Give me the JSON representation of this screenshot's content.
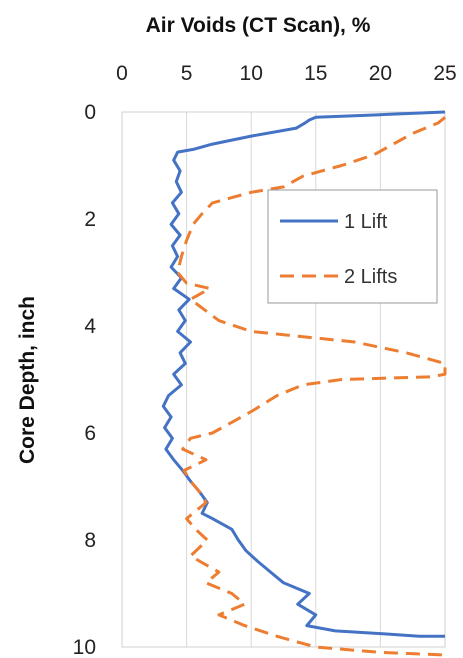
{
  "chart_data": {
    "type": "line",
    "title": "Air Voids (CT Scan), %",
    "xlabel": "Air Voids (CT Scan), %",
    "ylabel": "Core Depth, inch",
    "xlim": [
      0,
      25
    ],
    "ylim": [
      0,
      10
    ],
    "y_reversed": true,
    "x_axis_position": "top",
    "x_ticks": [
      "0",
      "5",
      "10",
      "15",
      "20",
      "25"
    ],
    "y_ticks": [
      "0",
      "2",
      "4",
      "6",
      "8",
      "10"
    ],
    "grid": "vertical",
    "legend_position": "right",
    "series": [
      {
        "name": "1 Lift",
        "color": "#4472c4",
        "dash": "solid",
        "points": [
          [
            25,
            0.0
          ],
          [
            20,
            0.05
          ],
          [
            15,
            0.1
          ],
          [
            14.5,
            0.15
          ],
          [
            14.2,
            0.2
          ],
          [
            13.5,
            0.3
          ],
          [
            10,
            0.45
          ],
          [
            7,
            0.6
          ],
          [
            5.5,
            0.7
          ],
          [
            4.3,
            0.75
          ],
          [
            4.0,
            0.9
          ],
          [
            4.5,
            1.1
          ],
          [
            4.2,
            1.3
          ],
          [
            4.6,
            1.5
          ],
          [
            3.9,
            1.7
          ],
          [
            4.4,
            1.9
          ],
          [
            3.8,
            2.1
          ],
          [
            4.5,
            2.3
          ],
          [
            3.9,
            2.5
          ],
          [
            4.3,
            2.7
          ],
          [
            3.8,
            2.9
          ],
          [
            4.6,
            3.1
          ],
          [
            4.0,
            3.3
          ],
          [
            5.2,
            3.5
          ],
          [
            4.4,
            3.7
          ],
          [
            4.9,
            3.9
          ],
          [
            4.3,
            4.1
          ],
          [
            5.3,
            4.3
          ],
          [
            4.5,
            4.5
          ],
          [
            4.9,
            4.7
          ],
          [
            4.0,
            4.9
          ],
          [
            4.6,
            5.1
          ],
          [
            3.6,
            5.3
          ],
          [
            3.2,
            5.5
          ],
          [
            3.8,
            5.7
          ],
          [
            3.3,
            5.9
          ],
          [
            3.9,
            6.1
          ],
          [
            3.4,
            6.3
          ],
          [
            4.0,
            6.5
          ],
          [
            4.7,
            6.7
          ],
          [
            5.3,
            6.9
          ],
          [
            6.0,
            7.1
          ],
          [
            6.6,
            7.3
          ],
          [
            6.2,
            7.5
          ],
          [
            7.0,
            7.6
          ],
          [
            8.5,
            7.8
          ],
          [
            9.0,
            8.0
          ],
          [
            9.6,
            8.2
          ],
          [
            10.5,
            8.4
          ],
          [
            11.5,
            8.6
          ],
          [
            12.5,
            8.8
          ],
          [
            14.5,
            9.0
          ],
          [
            13.6,
            9.2
          ],
          [
            15.0,
            9.4
          ],
          [
            14.3,
            9.6
          ],
          [
            16.5,
            9.7
          ],
          [
            20.0,
            9.75
          ],
          [
            23.0,
            9.8
          ],
          [
            25,
            9.8
          ]
        ]
      },
      {
        "name": "2 Lifts",
        "color": "#ed7d31",
        "dash": "dashed",
        "points": [
          [
            25,
            0.1
          ],
          [
            24.5,
            0.2
          ],
          [
            22.5,
            0.4
          ],
          [
            21,
            0.6
          ],
          [
            19.5,
            0.8
          ],
          [
            17,
            1.0
          ],
          [
            14,
            1.2
          ],
          [
            12.5,
            1.4
          ],
          [
            10,
            1.5
          ],
          [
            8.5,
            1.6
          ],
          [
            7,
            1.7
          ],
          [
            6.2,
            1.9
          ],
          [
            5.5,
            2.1
          ],
          [
            5.0,
            2.4
          ],
          [
            4.6,
            2.7
          ],
          [
            4.3,
            3.0
          ],
          [
            5.0,
            3.2
          ],
          [
            6.8,
            3.3
          ],
          [
            5.3,
            3.5
          ],
          [
            6.4,
            3.7
          ],
          [
            7.5,
            3.9
          ],
          [
            10,
            4.1
          ],
          [
            14,
            4.2
          ],
          [
            18,
            4.3
          ],
          [
            22,
            4.5
          ],
          [
            25,
            4.7
          ],
          [
            25,
            4.9
          ],
          [
            24,
            4.95
          ],
          [
            17,
            5.0
          ],
          [
            14,
            5.1
          ],
          [
            12,
            5.3
          ],
          [
            10,
            5.6
          ],
          [
            8.5,
            5.8
          ],
          [
            7,
            6.0
          ],
          [
            5.3,
            6.1
          ],
          [
            4.7,
            6.3
          ],
          [
            6.5,
            6.5
          ],
          [
            4.8,
            6.7
          ],
          [
            5.3,
            6.9
          ],
          [
            6.0,
            7.1
          ],
          [
            6.5,
            7.3
          ],
          [
            5.0,
            7.6
          ],
          [
            5.7,
            7.8
          ],
          [
            6.6,
            8.0
          ],
          [
            5.3,
            8.3
          ],
          [
            7.5,
            8.6
          ],
          [
            6.5,
            8.8
          ],
          [
            8.5,
            9.0
          ],
          [
            9.5,
            9.2
          ],
          [
            7.5,
            9.4
          ],
          [
            9.5,
            9.6
          ],
          [
            12,
            9.8
          ],
          [
            15,
            10.0
          ],
          [
            20,
            10.1
          ],
          [
            25,
            10.15
          ]
        ]
      }
    ]
  }
}
